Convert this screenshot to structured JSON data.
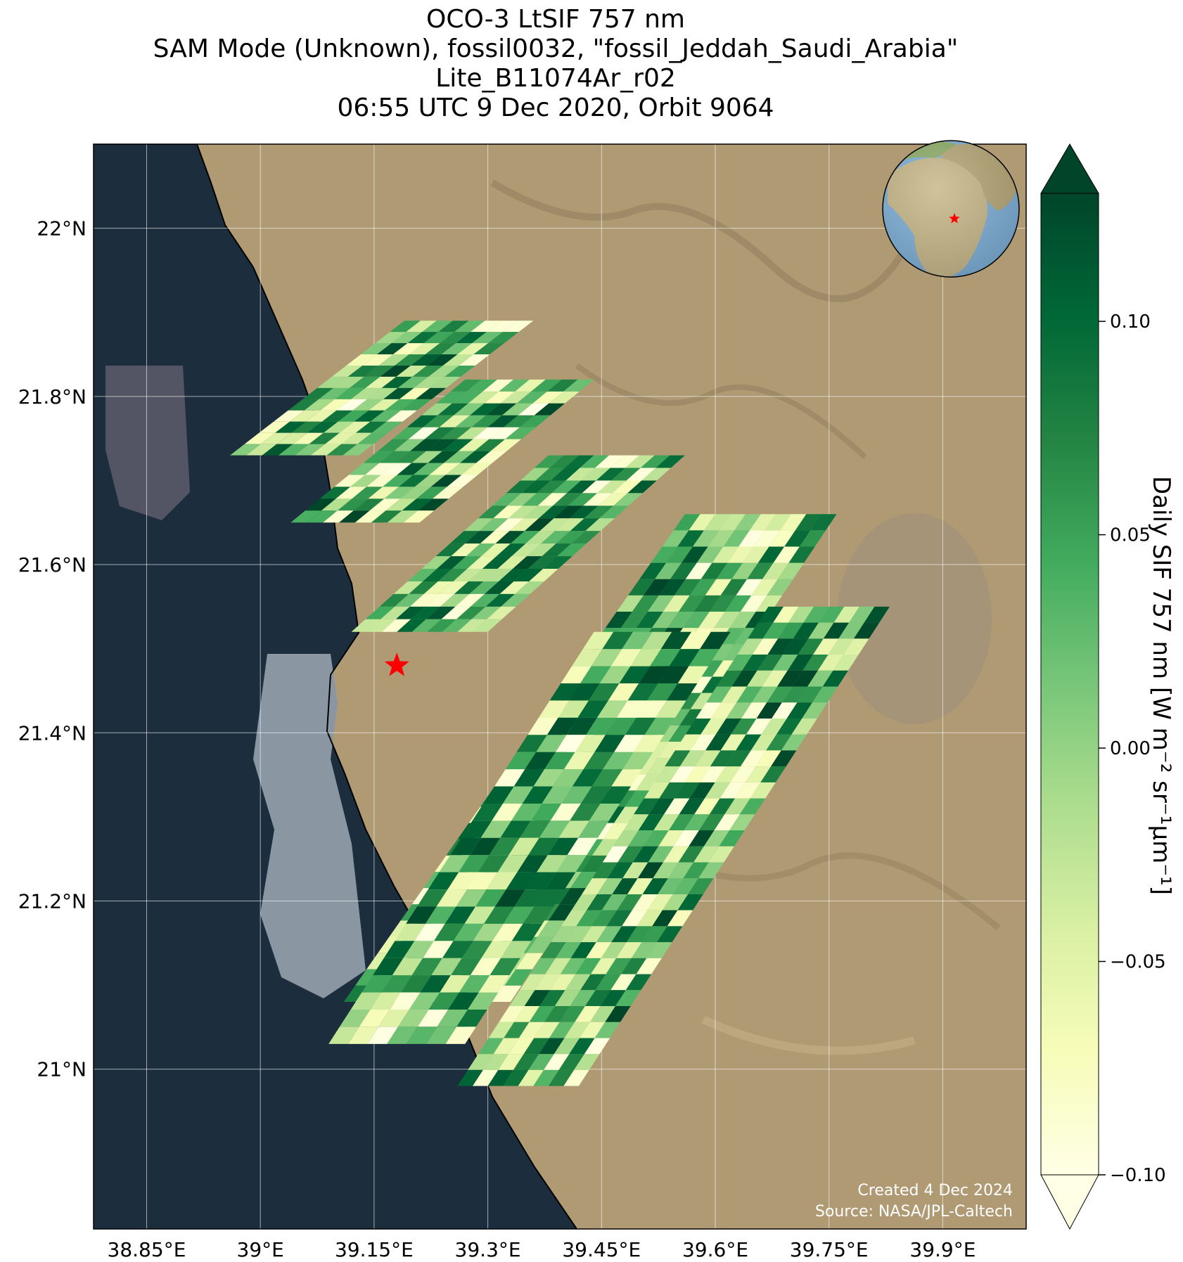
{
  "title": {
    "line1": "OCO-3 LtSIF 757 nm",
    "line2": "SAM Mode (Unknown), fossil0032, \"fossil_Jeddah_Saudi_Arabia\"",
    "line3": "Lite_B11074Ar_r02",
    "line4": "06:55 UTC 9 Dec 2020, Orbit 9064"
  },
  "map": {
    "lon_range": [
      38.78,
      40.01
    ],
    "lat_range": [
      20.81,
      22.1
    ],
    "lon_ticks": [
      {
        "value": 38.85,
        "label": "38.85°E"
      },
      {
        "value": 39.0,
        "label": "39°E"
      },
      {
        "value": 39.15,
        "label": "39.15°E"
      },
      {
        "value": 39.3,
        "label": "39.3°E"
      },
      {
        "value": 39.45,
        "label": "39.45°E"
      },
      {
        "value": 39.6,
        "label": "39.6°E"
      },
      {
        "value": 39.75,
        "label": "39.75°E"
      },
      {
        "value": 39.9,
        "label": "39.9°E"
      }
    ],
    "lat_ticks": [
      {
        "value": 22.0,
        "label": "22°N"
      },
      {
        "value": 21.8,
        "label": "21.8°N"
      },
      {
        "value": 21.6,
        "label": "21.6°N"
      },
      {
        "value": 21.4,
        "label": "21.4°N"
      },
      {
        "value": 21.2,
        "label": "21.2°N"
      },
      {
        "value": 21.0,
        "label": "21°N"
      }
    ],
    "target": {
      "lon": 39.18,
      "lat": 21.48,
      "marker": "red-star"
    },
    "swaths": [
      {
        "corners": [
          [
            39.19,
            21.89
          ],
          [
            39.36,
            21.89
          ],
          [
            39.13,
            21.73
          ],
          [
            38.96,
            21.73
          ]
        ],
        "cols": 8,
        "rows": 12
      },
      {
        "corners": [
          [
            39.27,
            21.82
          ],
          [
            39.44,
            21.82
          ],
          [
            39.21,
            21.65
          ],
          [
            39.04,
            21.65
          ]
        ],
        "cols": 8,
        "rows": 12
      },
      {
        "corners": [
          [
            39.38,
            21.73
          ],
          [
            39.56,
            21.73
          ],
          [
            39.3,
            21.52
          ],
          [
            39.12,
            21.52
          ]
        ],
        "cols": 9,
        "rows": 14
      },
      {
        "corners": [
          [
            39.56,
            21.66
          ],
          [
            39.76,
            21.66
          ],
          [
            39.33,
            21.08
          ],
          [
            39.11,
            21.08
          ]
        ],
        "cols": 10,
        "rows": 30
      },
      {
        "corners": [
          [
            39.67,
            21.55
          ],
          [
            39.83,
            21.55
          ],
          [
            39.42,
            20.98
          ],
          [
            39.26,
            20.98
          ]
        ],
        "cols": 8,
        "rows": 30
      },
      {
        "corners": [
          [
            39.44,
            21.52
          ],
          [
            39.62,
            21.52
          ],
          [
            39.27,
            21.03
          ],
          [
            39.09,
            21.03
          ]
        ],
        "cols": 7,
        "rows": 24
      }
    ],
    "colors": {
      "ocean": "#1c2e3d",
      "land": "#b09a74",
      "shallow": "#8a96a2"
    }
  },
  "inset": {
    "marker": "red-star",
    "view": "globe"
  },
  "colorbar": {
    "label": "Daily SIF 757 nm [W m⁻² sr⁻¹μm⁻¹]",
    "vmin": -0.1,
    "vmax": 0.13,
    "ticks": [
      {
        "value": 0.1,
        "label": "0.10"
      },
      {
        "value": 0.05,
        "label": "0.05"
      },
      {
        "value": 0.0,
        "label": "0.00"
      },
      {
        "value": -0.05,
        "label": "−0.05"
      },
      {
        "value": -0.1,
        "label": "−0.10"
      }
    ],
    "colormap": [
      "#ffffe5",
      "#f7fcb9",
      "#d9f0a3",
      "#addd8e",
      "#78c679",
      "#41ab5d",
      "#238443",
      "#006837",
      "#004529"
    ],
    "extend": "both"
  },
  "credits": {
    "created": "Created 4 Dec 2024",
    "source": "Source: NASA/JPL-Caltech"
  }
}
